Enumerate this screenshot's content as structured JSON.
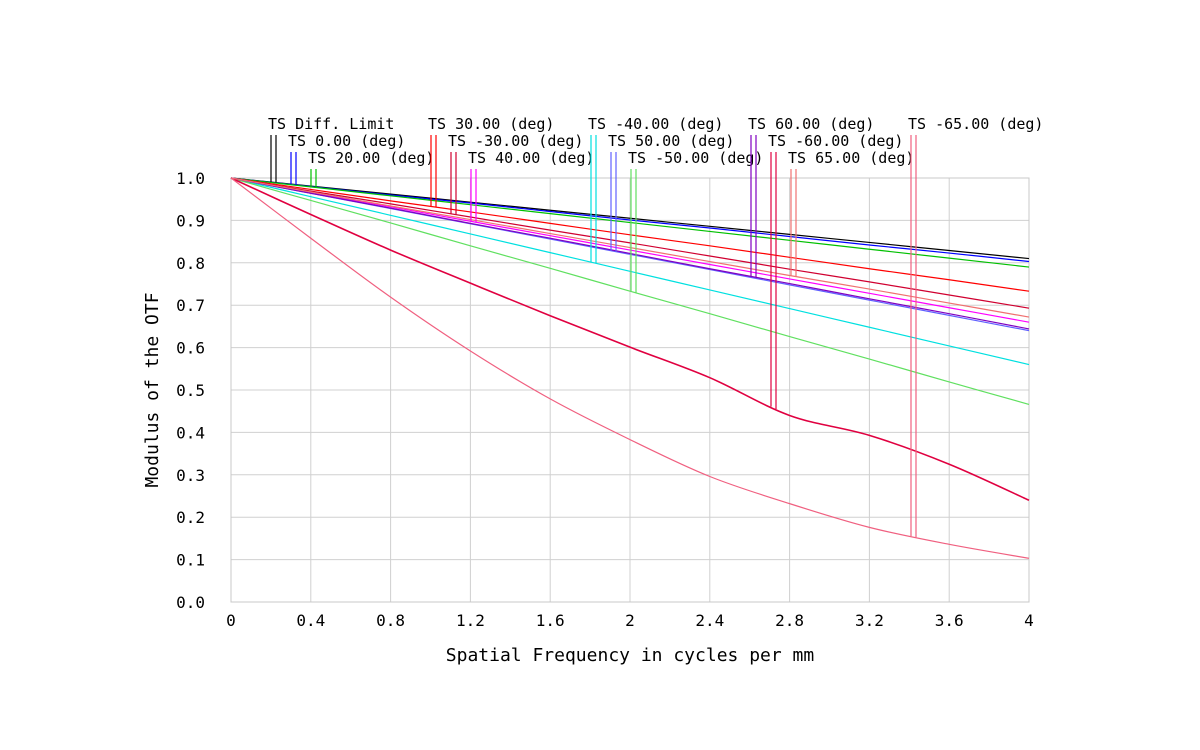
{
  "chart_data": {
    "type": "line",
    "title": "",
    "xlabel": "Spatial Frequency in cycles per mm",
    "ylabel": "Modulus of the OTF",
    "xlim": [
      0,
      4
    ],
    "ylim": [
      0,
      1
    ],
    "x_ticks": [
      "0",
      "0.4",
      "0.8",
      "1.2",
      "1.6",
      "2",
      "2.4",
      "2.8",
      "3.2",
      "3.6",
      "4"
    ],
    "y_ticks": [
      "0.0",
      "0.1",
      "0.2",
      "0.3",
      "0.4",
      "0.5",
      "0.6",
      "0.7",
      "0.8",
      "0.9",
      "1.0"
    ],
    "grid": true,
    "legend_position": "top",
    "x": [
      0,
      0.4,
      0.8,
      1.2,
      1.6,
      2.0,
      2.4,
      2.8,
      3.2,
      3.6,
      4.0
    ],
    "series": [
      {
        "name": "TS Diff. Limit",
        "color": "#000000",
        "values": [
          1.0,
          0.981,
          0.962,
          0.943,
          0.924,
          0.905,
          0.886,
          0.867,
          0.848,
          0.829,
          0.81
        ]
      },
      {
        "name": "TS 0.00 (deg)",
        "color": "#0000ff",
        "values": [
          1.0,
          0.98,
          0.96,
          0.941,
          0.921,
          0.901,
          0.882,
          0.862,
          0.842,
          0.823,
          0.803
        ]
      },
      {
        "name": "TS 20.00 (deg)",
        "color": "#00c000",
        "values": [
          1.0,
          0.979,
          0.958,
          0.937,
          0.916,
          0.895,
          0.874,
          0.853,
          0.832,
          0.811,
          0.79
        ]
      },
      {
        "name": "TS 30.00 (deg)",
        "color": "#ff0000",
        "values": [
          1.0,
          0.973,
          0.946,
          0.92,
          0.893,
          0.866,
          0.84,
          0.813,
          0.786,
          0.76,
          0.733
        ]
      },
      {
        "name": "TS -30.00 (deg)",
        "color": "#d00030",
        "values": [
          1.0,
          0.969,
          0.939,
          0.908,
          0.877,
          0.847,
          0.816,
          0.785,
          0.755,
          0.724,
          0.693
        ]
      },
      {
        "name": "TS 40.00 (deg)",
        "color": "#ff00ff",
        "values": [
          1.0,
          0.966,
          0.932,
          0.898,
          0.864,
          0.83,
          0.796,
          0.762,
          0.728,
          0.694,
          0.66
        ]
      },
      {
        "name": "TS -40.00 (deg)",
        "color": "#00e0e0",
        "values": [
          1.0,
          0.956,
          0.912,
          0.868,
          0.824,
          0.78,
          0.736,
          0.692,
          0.648,
          0.604,
          0.56
        ]
      },
      {
        "name": "TS 50.00 (deg)",
        "color": "#6060ff",
        "values": [
          1.0,
          0.964,
          0.928,
          0.892,
          0.856,
          0.82,
          0.784,
          0.748,
          0.712,
          0.676,
          0.64
        ]
      },
      {
        "name": "TS -50.00 (deg)",
        "color": "#60e060",
        "values": [
          1.0,
          0.947,
          0.894,
          0.84,
          0.787,
          0.733,
          0.68,
          0.626,
          0.573,
          0.519,
          0.466
        ]
      },
      {
        "name": "TS 60.00 (deg)",
        "color": "#8000c0",
        "values": [
          1.0,
          0.964,
          0.929,
          0.893,
          0.858,
          0.822,
          0.786,
          0.751,
          0.715,
          0.68,
          0.644
        ]
      },
      {
        "name": "TS -60.00 (deg)",
        "color": "#e00040",
        "values": [
          1.0,
          0.914,
          0.83,
          0.752,
          0.675,
          0.601,
          0.529,
          0.44,
          0.393,
          0.325,
          0.24
        ]
      },
      {
        "name": "TS 65.00 (deg)",
        "color": "#f07070",
        "values": [
          1.0,
          0.967,
          0.934,
          0.902,
          0.869,
          0.836,
          0.803,
          0.77,
          0.738,
          0.705,
          0.672
        ]
      },
      {
        "name": "TS -65.00 (deg)",
        "color": "#f06080",
        "values": [
          1.0,
          0.858,
          0.719,
          0.592,
          0.479,
          0.383,
          0.296,
          0.232,
          0.176,
          0.136,
          0.103
        ]
      }
    ]
  }
}
